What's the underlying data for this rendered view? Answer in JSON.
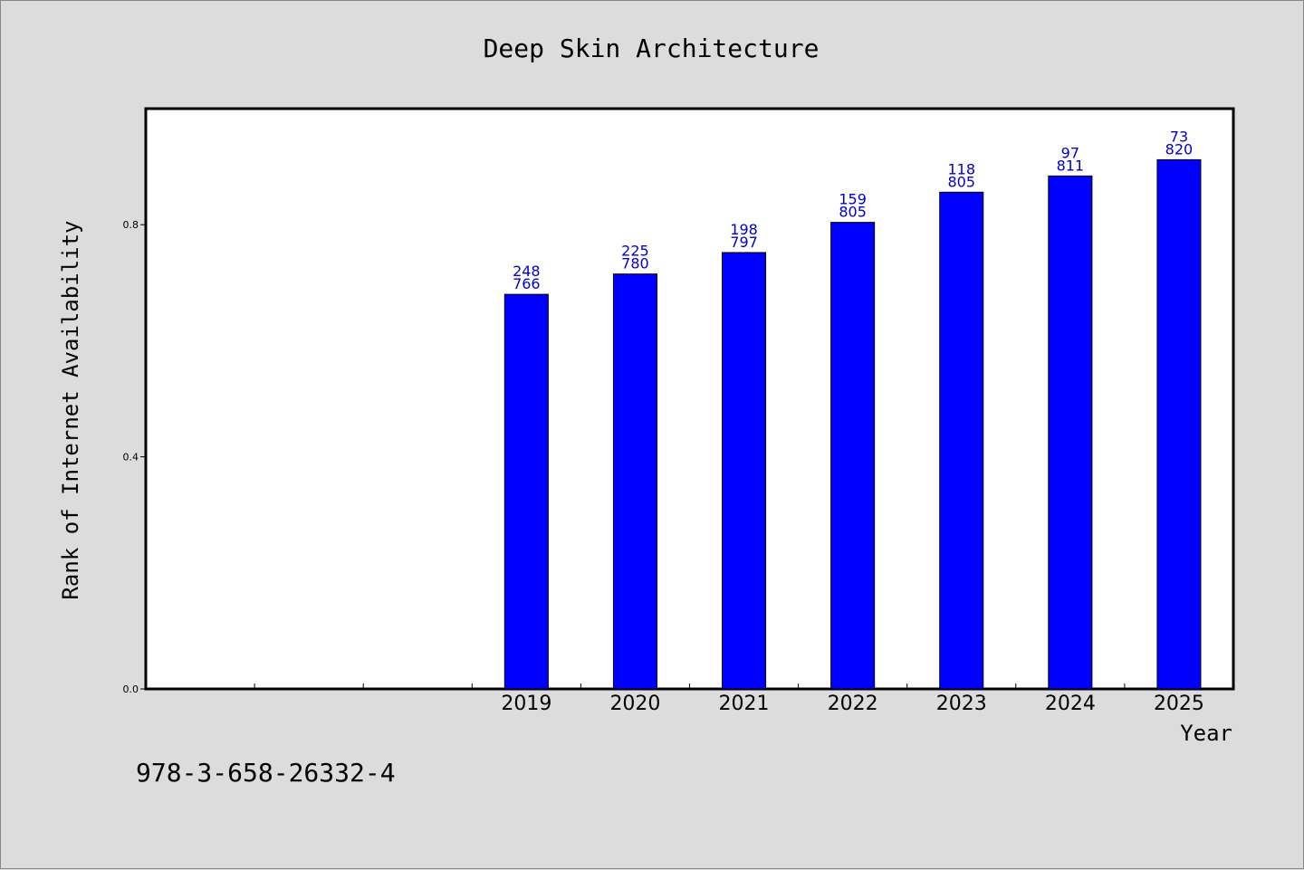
{
  "chart_data": {
    "type": "bar",
    "title": "Deep Skin Architecture",
    "xlabel": "Year",
    "ylabel": "Rank of Internet Availability",
    "categories": [
      "",
      "",
      "",
      "2019",
      "2020",
      "2021",
      "2022",
      "2023",
      "2024",
      "2025"
    ],
    "values": [
      null,
      null,
      null,
      0.68,
      0.715,
      0.752,
      0.804,
      0.856,
      0.884,
      0.912
    ],
    "bar_labels": [
      null,
      null,
      null,
      [
        "248",
        "766"
      ],
      [
        "225",
        "780"
      ],
      [
        "198",
        "797"
      ],
      [
        "159",
        "805"
      ],
      [
        "118",
        "805"
      ],
      [
        "97",
        "811"
      ],
      [
        "73",
        "820"
      ]
    ],
    "yticks": [
      "0.0",
      "0.4",
      "0.8"
    ],
    "ytick_values": [
      0.0,
      0.4,
      0.8
    ],
    "ylim": [
      0,
      1.0
    ],
    "grid": false,
    "colors": {
      "bar": "#0000ff",
      "bar_label": "#0000cc",
      "background": "#dcdcdc",
      "plot_area": "#ffffff"
    }
  },
  "footer": {
    "isbn": "978-3-658-26332-4"
  }
}
